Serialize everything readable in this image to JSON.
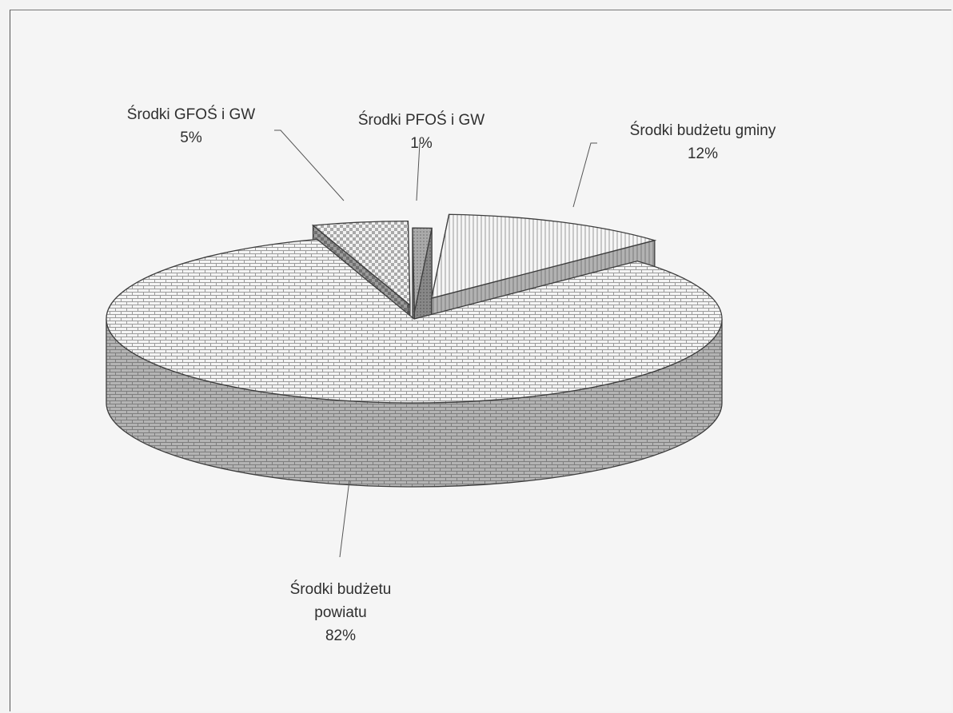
{
  "chart_data": {
    "type": "pie",
    "style": "3d-exploded",
    "title": "",
    "legend": "none",
    "slices": [
      {
        "label_lines": [
          "Środki budżetu gminy"
        ],
        "value_label": "12%",
        "value": 12
      },
      {
        "label_lines": [
          "Środki budżetu",
          "powiatu"
        ],
        "value_label": "82%",
        "value": 82
      },
      {
        "label_lines": [
          "Środki GFOŚ i GW"
        ],
        "value_label": "5%",
        "value": 5
      },
      {
        "label_lines": [
          "Środki PFOŚ i GW"
        ],
        "value_label": "1%",
        "value": 1
      }
    ]
  }
}
